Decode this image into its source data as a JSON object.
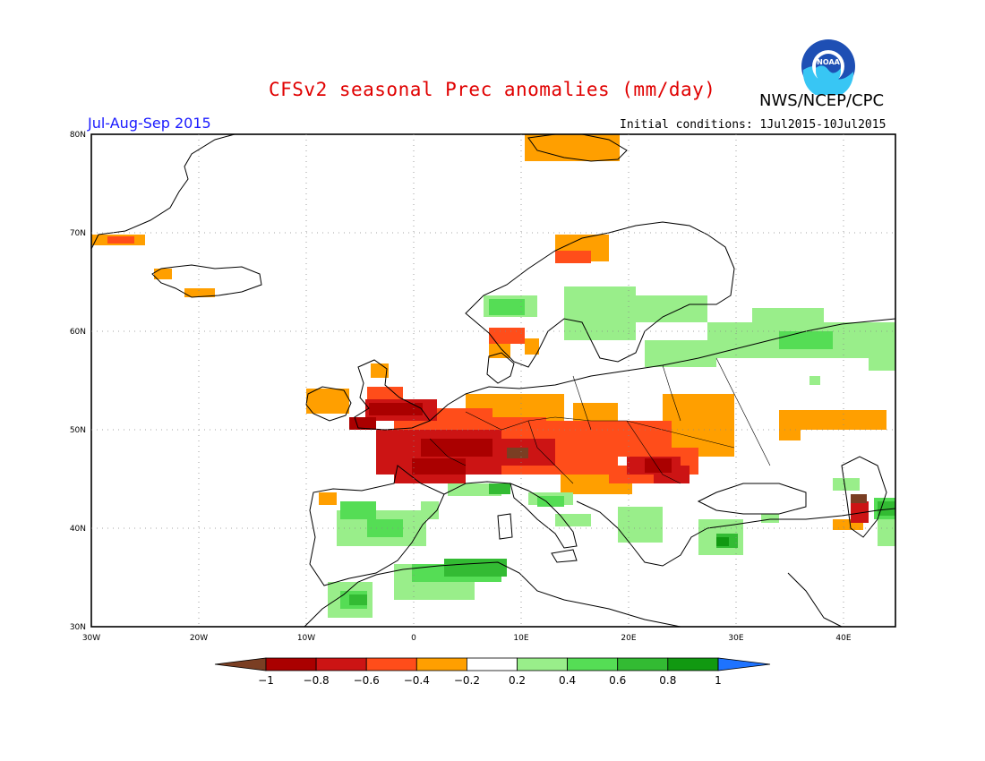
{
  "header": {
    "title": "CFSv2 seasonal Prec anomalies (mm/day)",
    "agency": "NWS/NCEP/CPC",
    "logo_text": "NOAA",
    "season": "Jul-Aug-Sep 2015",
    "initial_conditions": "Initial conditions: 1Jul2015-10Jul2015"
  },
  "map": {
    "lon_labels": [
      "30W",
      "20W",
      "10W",
      "0",
      "10E",
      "20E",
      "30E",
      "40E"
    ],
    "lat_labels": [
      "80N",
      "70N",
      "60N",
      "50N",
      "40N",
      "30N"
    ]
  },
  "colorbar": {
    "labels": [
      "-1",
      "-0.8",
      "-0.6",
      "-0.4",
      "-0.2",
      "0.2",
      "0.4",
      "0.6",
      "0.8",
      "1"
    ],
    "colors": [
      "#7a3e23",
      "#aa0000",
      "#cc1414",
      "#ff4d1a",
      "#ff9f00",
      "#ffffff",
      "#99ee8a",
      "#55dd55",
      "#33bb33",
      "#119911",
      "#1e73ff"
    ]
  },
  "colors": {
    "title": "#e00000",
    "season": "#1a1aff",
    "dry_strong": "#aa0000",
    "dry": "#cc1414",
    "dry_moderate": "#ff4d1a",
    "dry_weak": "#ff9f00",
    "wet_weak": "#99ee8a",
    "wet": "#55dd55",
    "wet_moderate": "#33bb33",
    "wet_strong": "#119911"
  }
}
